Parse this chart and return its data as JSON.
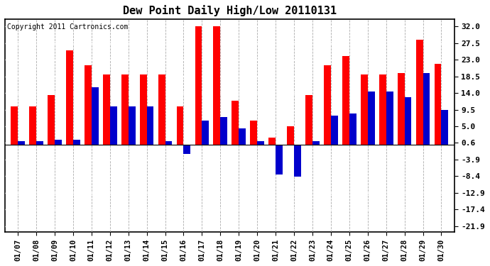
{
  "title": "Dew Point Daily High/Low 20110131",
  "copyright": "Copyright 2011 Cartronics.com",
  "dates": [
    "01/07",
    "01/08",
    "01/09",
    "01/10",
    "01/11",
    "01/12",
    "01/13",
    "01/14",
    "01/15",
    "01/16",
    "01/17",
    "01/18",
    "01/19",
    "01/20",
    "01/21",
    "01/22",
    "01/23",
    "01/24",
    "01/25",
    "01/26",
    "01/27",
    "01/28",
    "01/29",
    "01/30"
  ],
  "highs": [
    10.5,
    10.5,
    13.5,
    25.5,
    21.5,
    19.0,
    19.0,
    19.0,
    19.0,
    10.5,
    32.0,
    32.0,
    12.0,
    6.5,
    2.0,
    5.0,
    13.5,
    21.5,
    24.0,
    19.0,
    19.0,
    19.5,
    28.5,
    22.0
  ],
  "lows": [
    1.0,
    1.0,
    1.5,
    1.5,
    15.5,
    10.5,
    10.5,
    10.5,
    1.0,
    -2.5,
    6.5,
    7.5,
    4.5,
    1.0,
    -8.0,
    -8.5,
    1.0,
    8.0,
    8.5,
    14.5,
    14.5,
    13.0,
    19.5,
    9.5
  ],
  "yticks": [
    32.0,
    27.5,
    23.0,
    18.5,
    14.0,
    9.5,
    5.0,
    0.6,
    -3.9,
    -8.4,
    -12.9,
    -17.4,
    -21.9
  ],
  "ylim": [
    -23.5,
    34.0
  ],
  "bar_color_high": "#ff0000",
  "bar_color_low": "#0000cc",
  "background_color": "#ffffff",
  "plot_bg_color": "#ffffff",
  "grid_color": "#aaaaaa",
  "title_fontsize": 11,
  "copyright_fontsize": 7,
  "bar_width": 0.38
}
